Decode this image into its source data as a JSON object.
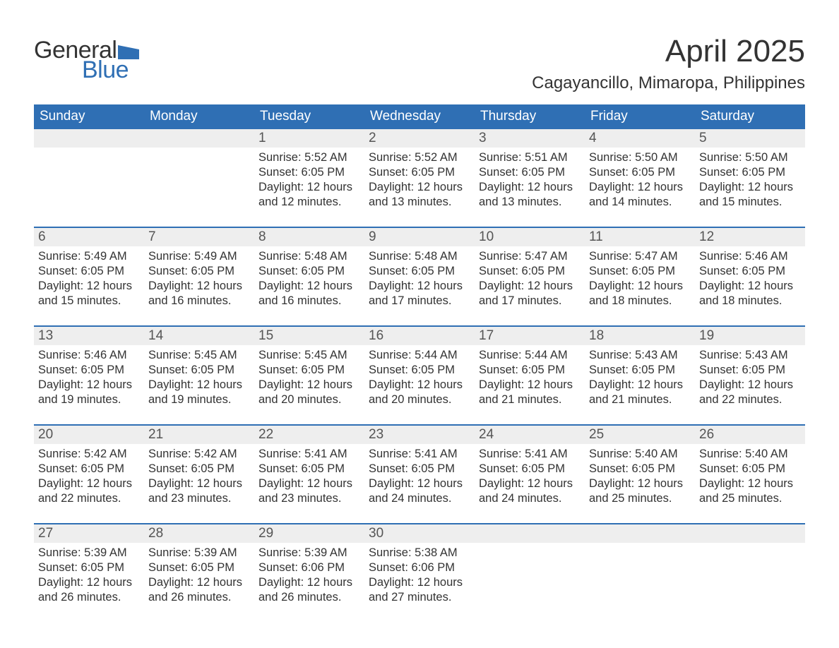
{
  "logo": {
    "word1": "General",
    "word2": "Blue",
    "flag_color": "#2f6fb4",
    "word1_color": "#333333",
    "word2_color": "#2f6fb4"
  },
  "title": "April 2025",
  "location": "Cagayancillo, Mimaropa, Philippines",
  "colors": {
    "header_bg": "#2f6fb4",
    "header_text": "#ffffff",
    "daynum_bg": "#eeeeee",
    "week_border": "#2f6fb4",
    "body_text": "#333333"
  },
  "weekdays": [
    "Sunday",
    "Monday",
    "Tuesday",
    "Wednesday",
    "Thursday",
    "Friday",
    "Saturday"
  ],
  "weeks": [
    [
      {
        "empty": true
      },
      {
        "empty": true
      },
      {
        "day": "1",
        "sunrise": "Sunrise: 5:52 AM",
        "sunset": "Sunset: 6:05 PM",
        "daylight1": "Daylight: 12 hours",
        "daylight2": "and 12 minutes."
      },
      {
        "day": "2",
        "sunrise": "Sunrise: 5:52 AM",
        "sunset": "Sunset: 6:05 PM",
        "daylight1": "Daylight: 12 hours",
        "daylight2": "and 13 minutes."
      },
      {
        "day": "3",
        "sunrise": "Sunrise: 5:51 AM",
        "sunset": "Sunset: 6:05 PM",
        "daylight1": "Daylight: 12 hours",
        "daylight2": "and 13 minutes."
      },
      {
        "day": "4",
        "sunrise": "Sunrise: 5:50 AM",
        "sunset": "Sunset: 6:05 PM",
        "daylight1": "Daylight: 12 hours",
        "daylight2": "and 14 minutes."
      },
      {
        "day": "5",
        "sunrise": "Sunrise: 5:50 AM",
        "sunset": "Sunset: 6:05 PM",
        "daylight1": "Daylight: 12 hours",
        "daylight2": "and 15 minutes."
      }
    ],
    [
      {
        "day": "6",
        "sunrise": "Sunrise: 5:49 AM",
        "sunset": "Sunset: 6:05 PM",
        "daylight1": "Daylight: 12 hours",
        "daylight2": "and 15 minutes."
      },
      {
        "day": "7",
        "sunrise": "Sunrise: 5:49 AM",
        "sunset": "Sunset: 6:05 PM",
        "daylight1": "Daylight: 12 hours",
        "daylight2": "and 16 minutes."
      },
      {
        "day": "8",
        "sunrise": "Sunrise: 5:48 AM",
        "sunset": "Sunset: 6:05 PM",
        "daylight1": "Daylight: 12 hours",
        "daylight2": "and 16 minutes."
      },
      {
        "day": "9",
        "sunrise": "Sunrise: 5:48 AM",
        "sunset": "Sunset: 6:05 PM",
        "daylight1": "Daylight: 12 hours",
        "daylight2": "and 17 minutes."
      },
      {
        "day": "10",
        "sunrise": "Sunrise: 5:47 AM",
        "sunset": "Sunset: 6:05 PM",
        "daylight1": "Daylight: 12 hours",
        "daylight2": "and 17 minutes."
      },
      {
        "day": "11",
        "sunrise": "Sunrise: 5:47 AM",
        "sunset": "Sunset: 6:05 PM",
        "daylight1": "Daylight: 12 hours",
        "daylight2": "and 18 minutes."
      },
      {
        "day": "12",
        "sunrise": "Sunrise: 5:46 AM",
        "sunset": "Sunset: 6:05 PM",
        "daylight1": "Daylight: 12 hours",
        "daylight2": "and 18 minutes."
      }
    ],
    [
      {
        "day": "13",
        "sunrise": "Sunrise: 5:46 AM",
        "sunset": "Sunset: 6:05 PM",
        "daylight1": "Daylight: 12 hours",
        "daylight2": "and 19 minutes."
      },
      {
        "day": "14",
        "sunrise": "Sunrise: 5:45 AM",
        "sunset": "Sunset: 6:05 PM",
        "daylight1": "Daylight: 12 hours",
        "daylight2": "and 19 minutes."
      },
      {
        "day": "15",
        "sunrise": "Sunrise: 5:45 AM",
        "sunset": "Sunset: 6:05 PM",
        "daylight1": "Daylight: 12 hours",
        "daylight2": "and 20 minutes."
      },
      {
        "day": "16",
        "sunrise": "Sunrise: 5:44 AM",
        "sunset": "Sunset: 6:05 PM",
        "daylight1": "Daylight: 12 hours",
        "daylight2": "and 20 minutes."
      },
      {
        "day": "17",
        "sunrise": "Sunrise: 5:44 AM",
        "sunset": "Sunset: 6:05 PM",
        "daylight1": "Daylight: 12 hours",
        "daylight2": "and 21 minutes."
      },
      {
        "day": "18",
        "sunrise": "Sunrise: 5:43 AM",
        "sunset": "Sunset: 6:05 PM",
        "daylight1": "Daylight: 12 hours",
        "daylight2": "and 21 minutes."
      },
      {
        "day": "19",
        "sunrise": "Sunrise: 5:43 AM",
        "sunset": "Sunset: 6:05 PM",
        "daylight1": "Daylight: 12 hours",
        "daylight2": "and 22 minutes."
      }
    ],
    [
      {
        "day": "20",
        "sunrise": "Sunrise: 5:42 AM",
        "sunset": "Sunset: 6:05 PM",
        "daylight1": "Daylight: 12 hours",
        "daylight2": "and 22 minutes."
      },
      {
        "day": "21",
        "sunrise": "Sunrise: 5:42 AM",
        "sunset": "Sunset: 6:05 PM",
        "daylight1": "Daylight: 12 hours",
        "daylight2": "and 23 minutes."
      },
      {
        "day": "22",
        "sunrise": "Sunrise: 5:41 AM",
        "sunset": "Sunset: 6:05 PM",
        "daylight1": "Daylight: 12 hours",
        "daylight2": "and 23 minutes."
      },
      {
        "day": "23",
        "sunrise": "Sunrise: 5:41 AM",
        "sunset": "Sunset: 6:05 PM",
        "daylight1": "Daylight: 12 hours",
        "daylight2": "and 24 minutes."
      },
      {
        "day": "24",
        "sunrise": "Sunrise: 5:41 AM",
        "sunset": "Sunset: 6:05 PM",
        "daylight1": "Daylight: 12 hours",
        "daylight2": "and 24 minutes."
      },
      {
        "day": "25",
        "sunrise": "Sunrise: 5:40 AM",
        "sunset": "Sunset: 6:05 PM",
        "daylight1": "Daylight: 12 hours",
        "daylight2": "and 25 minutes."
      },
      {
        "day": "26",
        "sunrise": "Sunrise: 5:40 AM",
        "sunset": "Sunset: 6:05 PM",
        "daylight1": "Daylight: 12 hours",
        "daylight2": "and 25 minutes."
      }
    ],
    [
      {
        "day": "27",
        "sunrise": "Sunrise: 5:39 AM",
        "sunset": "Sunset: 6:05 PM",
        "daylight1": "Daylight: 12 hours",
        "daylight2": "and 26 minutes."
      },
      {
        "day": "28",
        "sunrise": "Sunrise: 5:39 AM",
        "sunset": "Sunset: 6:05 PM",
        "daylight1": "Daylight: 12 hours",
        "daylight2": "and 26 minutes."
      },
      {
        "day": "29",
        "sunrise": "Sunrise: 5:39 AM",
        "sunset": "Sunset: 6:06 PM",
        "daylight1": "Daylight: 12 hours",
        "daylight2": "and 26 minutes."
      },
      {
        "day": "30",
        "sunrise": "Sunrise: 5:38 AM",
        "sunset": "Sunset: 6:06 PM",
        "daylight1": "Daylight: 12 hours",
        "daylight2": "and 27 minutes."
      },
      {
        "empty": true
      },
      {
        "empty": true
      },
      {
        "empty": true
      }
    ]
  ]
}
